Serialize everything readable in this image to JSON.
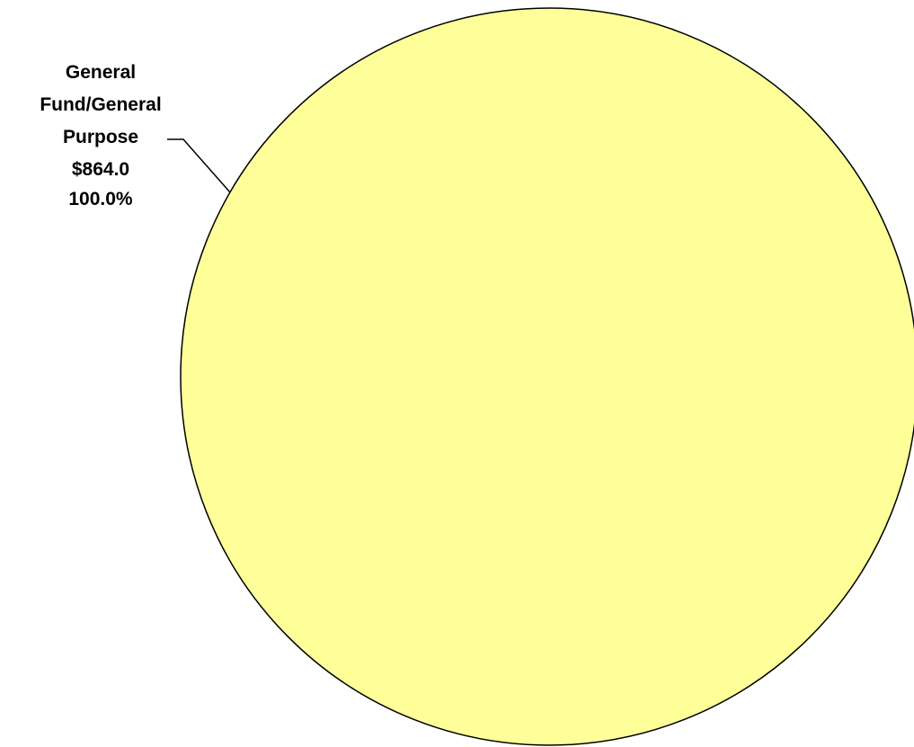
{
  "chart_data": {
    "type": "pie",
    "title": "",
    "slices": [
      {
        "label_lines": [
          "General",
          "Fund/General",
          "Purpose"
        ],
        "value_text": "$864.0",
        "percent_text": "100.0%",
        "value": 864.0,
        "percent": 100.0,
        "color": "#FFFF99"
      }
    ]
  }
}
